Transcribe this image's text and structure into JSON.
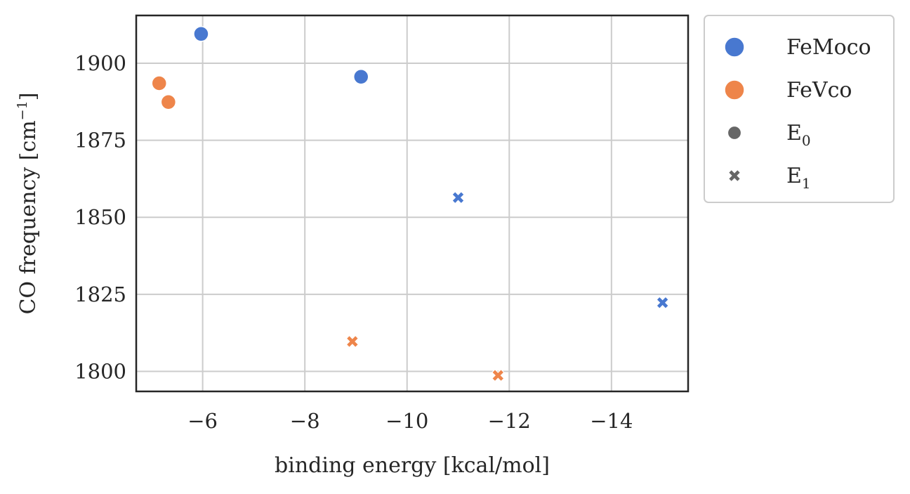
{
  "chart_data": {
    "type": "scatter",
    "title": "",
    "xlabel": "binding energy [kcal/mol]",
    "ylabel": {
      "prefix": "CO frequency [cm",
      "superscript": "−1",
      "suffix": "]"
    },
    "xlim": [
      -4.7,
      -15.5
    ],
    "ylim": [
      1793.5,
      1915.5
    ],
    "x_reversed": true,
    "grid": true,
    "x_ticks": [
      {
        "value": -6,
        "label": "−6"
      },
      {
        "value": -8,
        "label": "−8"
      },
      {
        "value": -10,
        "label": "−10"
      },
      {
        "value": -12,
        "label": "−12"
      },
      {
        "value": -14,
        "label": "−14"
      }
    ],
    "y_ticks": [
      {
        "value": 1800,
        "label": "1800"
      },
      {
        "value": 1825,
        "label": "1825"
      },
      {
        "value": 1850,
        "label": "1850"
      },
      {
        "value": 1875,
        "label": "1875"
      },
      {
        "value": 1900,
        "label": "1900"
      }
    ],
    "colors": {
      "FeMoco": "#4878d0",
      "FeVco": "#ee854a",
      "neutral": "#666666"
    },
    "points": [
      {
        "x": -5.97,
        "y": 1909.5,
        "series": "FeMoco",
        "marker": "circle"
      },
      {
        "x": -9.1,
        "y": 1895.6,
        "series": "FeMoco",
        "marker": "circle"
      },
      {
        "x": -11.0,
        "y": 1856.4,
        "series": "FeMoco",
        "marker": "cross"
      },
      {
        "x": -15.0,
        "y": 1822.3,
        "series": "FeMoco",
        "marker": "cross"
      },
      {
        "x": -5.15,
        "y": 1893.5,
        "series": "FeVco",
        "marker": "circle"
      },
      {
        "x": -5.33,
        "y": 1887.4,
        "series": "FeVco",
        "marker": "circle"
      },
      {
        "x": -8.93,
        "y": 1809.7,
        "series": "FeVco",
        "marker": "cross"
      },
      {
        "x": -11.78,
        "y": 1798.7,
        "series": "FeVco",
        "marker": "cross"
      }
    ],
    "legend": {
      "placement": "outside-right-top",
      "entries": [
        {
          "label": "FeMoco",
          "sub": "",
          "marker": "circle",
          "color_key": "FeMoco"
        },
        {
          "label": "FeVco",
          "sub": "",
          "marker": "circle",
          "color_key": "FeVco"
        },
        {
          "label": "E",
          "sub": "0",
          "marker": "circle",
          "color_key": "neutral"
        },
        {
          "label": "E",
          "sub": "1",
          "marker": "cross",
          "color_key": "neutral"
        }
      ]
    }
  }
}
